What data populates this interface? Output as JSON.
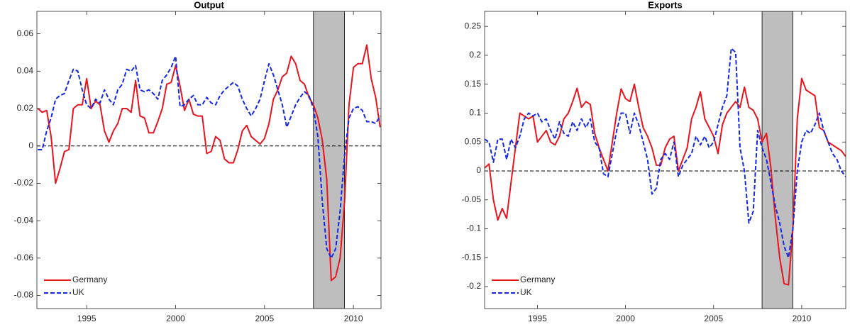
{
  "chart_data": [
    {
      "type": "line",
      "title": "Output",
      "x": [
        1992.25,
        1992.5,
        1992.75,
        1993,
        1993.25,
        1993.5,
        1993.75,
        1994,
        1994.25,
        1994.5,
        1994.75,
        1995,
        1995.25,
        1995.5,
        1995.75,
        1996,
        1996.25,
        1996.5,
        1996.75,
        1997,
        1997.25,
        1997.5,
        1997.75,
        1998,
        1998.25,
        1998.5,
        1998.75,
        1999,
        1999.25,
        1999.5,
        1999.75,
        2000,
        2000.25,
        2000.5,
        2000.75,
        2001,
        2001.25,
        2001.5,
        2001.75,
        2002,
        2002.25,
        2002.5,
        2002.75,
        2003,
        2003.25,
        2003.5,
        2003.75,
        2004,
        2004.25,
        2004.5,
        2004.75,
        2005,
        2005.25,
        2005.5,
        2005.75,
        2006,
        2006.25,
        2006.5,
        2006.75,
        2007,
        2007.25,
        2007.5,
        2007.75,
        2008,
        2008.25,
        2008.5,
        2008.75,
        2009,
        2009.25,
        2009.5,
        2009.75,
        2010,
        2010.25,
        2010.5,
        2010.75,
        2011,
        2011.25,
        2011.5
      ],
      "series": [
        {
          "name": "Germany",
          "color": "#e8141e",
          "dash": "solid",
          "values": [
            0.02,
            0.018,
            0.019,
            0.005,
            -0.02,
            -0.012,
            -0.003,
            -0.002,
            0.02,
            0.022,
            0.022,
            0.036,
            0.02,
            0.024,
            0.022,
            0.008,
            0.002,
            0.008,
            0.012,
            0.02,
            0.02,
            0.018,
            0.035,
            0.016,
            0.015,
            0.007,
            0.007,
            0.013,
            0.02,
            0.033,
            0.034,
            0.043,
            0.032,
            0.019,
            0.025,
            0.017,
            0.016,
            0.016,
            -0.004,
            -0.003,
            0.005,
            0.003,
            -0.007,
            -0.009,
            -0.009,
            -0.002,
            0.008,
            0.011,
            0.005,
            0.003,
            0.001,
            0.004,
            0.012,
            0.025,
            0.03,
            0.037,
            0.039,
            0.048,
            0.044,
            0.035,
            0.033,
            0.026,
            0.022,
            0.015,
            0.003,
            -0.018,
            -0.072,
            -0.07,
            -0.06,
            -0.03,
            0.022,
            0.042,
            0.044,
            0.044,
            0.054,
            0.036,
            0.026,
            0.01
          ]
        },
        {
          "name": "UK",
          "color": "#1428e6",
          "dash": "dashed",
          "values": [
            -0.002,
            -0.002,
            0.008,
            0.015,
            0.025,
            0.027,
            0.028,
            0.035,
            0.041,
            0.04,
            0.03,
            0.022,
            0.02,
            0.025,
            0.023,
            0.03,
            0.025,
            0.022,
            0.03,
            0.033,
            0.041,
            0.04,
            0.043,
            0.03,
            0.029,
            0.03,
            0.028,
            0.025,
            0.035,
            0.038,
            0.042,
            0.048,
            0.021,
            0.022,
            0.025,
            0.027,
            0.022,
            0.022,
            0.026,
            0.023,
            0.022,
            0.027,
            0.03,
            0.032,
            0.034,
            0.032,
            0.025,
            0.02,
            0.016,
            0.02,
            0.025,
            0.035,
            0.044,
            0.038,
            0.03,
            0.022,
            0.01,
            0.016,
            0.022,
            0.026,
            0.029,
            0.027,
            0.02,
            0.005,
            -0.03,
            -0.055,
            -0.06,
            -0.055,
            -0.035,
            -0.005,
            0.015,
            0.02,
            0.021,
            0.019,
            0.013,
            0.013,
            0.012,
            0.016
          ]
        }
      ],
      "xlim": [
        1992.2,
        2011.55
      ],
      "xticks": [
        1995,
        2000,
        2005,
        2010
      ],
      "ylim": [
        -0.087,
        0.072
      ],
      "yticks": [
        -0.08,
        -0.06,
        -0.04,
        -0.02,
        0,
        0.02,
        0.04,
        0.06
      ],
      "shaded_x": [
        2007.75,
        2009.5
      ],
      "reference_y": 0,
      "legend": "lower left"
    },
    {
      "type": "line",
      "title": "Exports",
      "x": [
        1992,
        1992.25,
        1992.5,
        1992.75,
        1993,
        1993.25,
        1993.5,
        1993.75,
        1994,
        1994.25,
        1994.5,
        1994.75,
        1995,
        1995.25,
        1995.5,
        1995.75,
        1996,
        1996.25,
        1996.5,
        1996.75,
        1997,
        1997.25,
        1997.5,
        1997.75,
        1998,
        1998.25,
        1998.5,
        1998.75,
        1999,
        1999.25,
        1999.5,
        1999.75,
        2000,
        2000.25,
        2000.5,
        2000.75,
        2001,
        2001.25,
        2001.5,
        2001.75,
        2002,
        2002.25,
        2002.5,
        2002.75,
        2003,
        2003.25,
        2003.5,
        2003.75,
        2004,
        2004.25,
        2004.5,
        2004.75,
        2005,
        2005.25,
        2005.5,
        2005.75,
        2006,
        2006.25,
        2006.5,
        2006.75,
        2007,
        2007.25,
        2007.5,
        2007.75,
        2008,
        2008.25,
        2008.5,
        2008.75,
        2009,
        2009.25,
        2009.5,
        2009.75,
        2010,
        2010.25,
        2010.5,
        2010.75,
        2011,
        2011.25,
        2011.5,
        2011.75,
        2012,
        2012.25,
        2012.5
      ],
      "series": [
        {
          "name": "Germany",
          "color": "#e8141e",
          "dash": "solid",
          "values": [
            0.005,
            0.012,
            -0.05,
            -0.085,
            -0.065,
            -0.082,
            -0.02,
            0.04,
            0.1,
            0.095,
            0.09,
            0.095,
            0.05,
            0.06,
            0.07,
            0.05,
            0.045,
            0.06,
            0.09,
            0.1,
            0.12,
            0.143,
            0.11,
            0.12,
            0.115,
            0.065,
            0.04,
            0.02,
            0.0,
            0.05,
            0.1,
            0.142,
            0.125,
            0.12,
            0.15,
            0.11,
            0.075,
            0.06,
            0.04,
            0.01,
            0.01,
            0.04,
            0.055,
            0.06,
            0.0,
            0.02,
            0.04,
            0.09,
            0.11,
            0.137,
            0.09,
            0.075,
            0.06,
            0.03,
            0.08,
            0.1,
            0.11,
            0.12,
            0.11,
            0.145,
            0.11,
            0.105,
            0.09,
            0.05,
            0.065,
            0.005,
            -0.08,
            -0.15,
            -0.195,
            -0.197,
            -0.1,
            0.09,
            0.16,
            0.14,
            0.135,
            0.13,
            0.075,
            0.07,
            0.05,
            0.045,
            0.04,
            0.035,
            0.025
          ]
        },
        {
          "name": "UK",
          "color": "#1428e6",
          "dash": "dashed",
          "values": [
            0.055,
            0.05,
            0.015,
            0.055,
            0.055,
            0.02,
            0.055,
            0.04,
            0.06,
            0.09,
            0.1,
            0.095,
            0.1,
            0.085,
            0.09,
            0.07,
            0.055,
            0.085,
            0.065,
            0.06,
            0.085,
            0.07,
            0.09,
            0.075,
            0.09,
            0.05,
            0.04,
            -0.005,
            -0.01,
            0.03,
            0.07,
            0.1,
            0.1,
            0.065,
            0.1,
            0.08,
            0.05,
            0.02,
            -0.04,
            -0.03,
            0.02,
            0.03,
            0.02,
            0.05,
            -0.01,
            0.01,
            0.02,
            0.03,
            0.06,
            0.045,
            0.06,
            0.04,
            0.05,
            0.08,
            0.11,
            0.13,
            0.212,
            0.205,
            0.04,
            0.0,
            -0.09,
            -0.07,
            0.07,
            0.04,
            0.02,
            -0.02,
            -0.06,
            -0.09,
            -0.13,
            -0.15,
            -0.1,
            0.0,
            0.05,
            0.07,
            0.065,
            0.08,
            0.1,
            0.07,
            0.05,
            0.03,
            0.02,
            0.0,
            -0.01
          ]
        }
      ],
      "xlim": [
        1992.0,
        2012.5
      ],
      "xticks": [
        1995,
        2000,
        2005,
        2010
      ],
      "ylim": [
        -0.238,
        0.276
      ],
      "yticks": [
        -0.2,
        -0.15,
        -0.1,
        -0.05,
        0,
        0.05,
        0.1,
        0.15,
        0.2,
        0.25
      ],
      "shaded_x": [
        2007.75,
        2009.5
      ],
      "reference_y": 0,
      "legend": "lower left"
    }
  ]
}
